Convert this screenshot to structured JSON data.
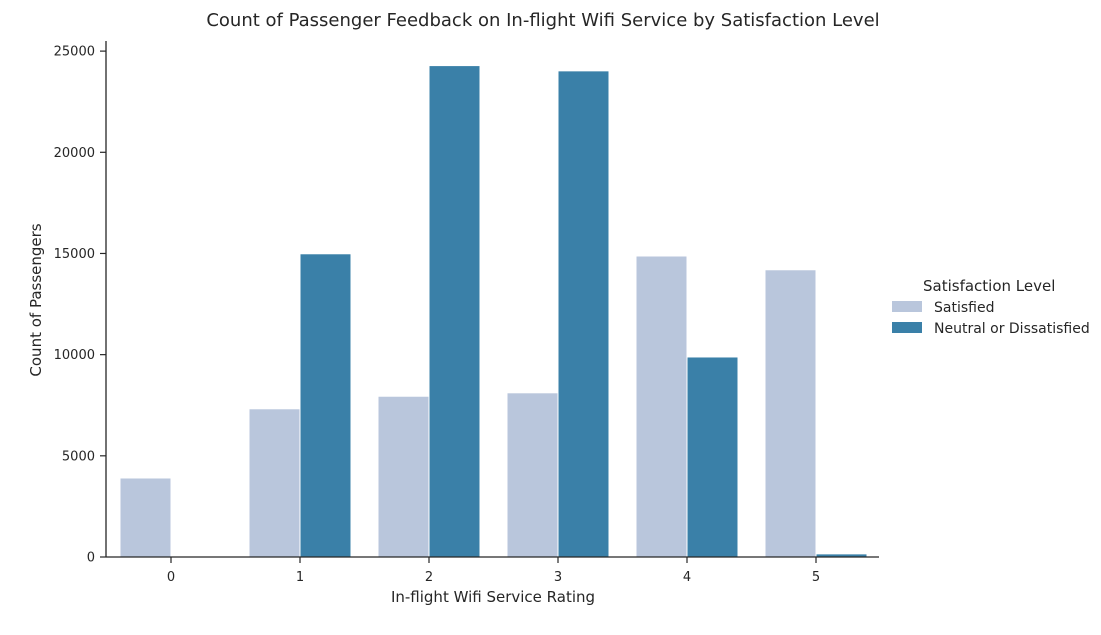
{
  "chart_data": {
    "type": "bar",
    "title": "Count of Passenger Feedback on In-flight Wifi Service by Satisfaction Level",
    "xlabel": "In-flight Wifi Service Rating",
    "ylabel": "Count of Passengers",
    "categories": [
      "0",
      "1",
      "2",
      "3",
      "4",
      "5"
    ],
    "series": [
      {
        "name": "Satisfied",
        "color": "#b9c6dc",
        "values": [
          3880,
          7300,
          7920,
          8090,
          14850,
          14170
        ]
      },
      {
        "name": "Neutral or Dissatisfied",
        "color": "#3a80a8",
        "values": [
          0,
          14960,
          24260,
          24000,
          9860,
          130
        ]
      }
    ],
    "ylim": [
      0,
      25500
    ],
    "yticks": [
      0,
      5000,
      10000,
      15000,
      20000,
      25000
    ],
    "grid": false,
    "legend": {
      "title": "Satisfaction Level",
      "placement": "right"
    }
  }
}
